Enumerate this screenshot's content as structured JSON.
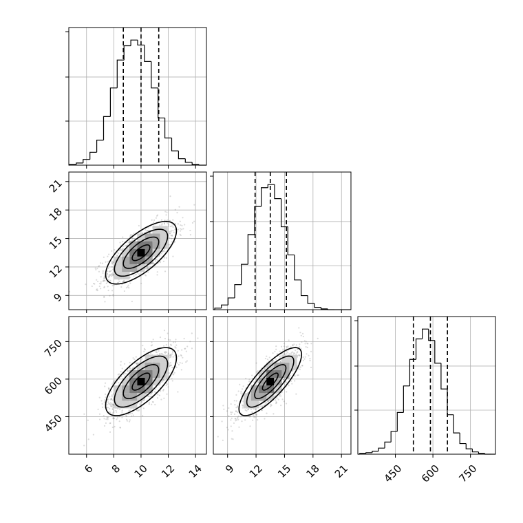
{
  "chart_data": {
    "type": "corner",
    "title": "",
    "variables": [
      {
        "range": [
          4.7,
          14.8
        ],
        "ticks": [
          6,
          8,
          10,
          12,
          14
        ],
        "tick_labels": [
          "6",
          "8",
          "10",
          "12",
          "14"
        ],
        "mean": 10.0,
        "sigma": 1.3,
        "quantiles": [
          8.7,
          10.0,
          11.3
        ],
        "hist_x": [
          5,
          5.5,
          6,
          6.5,
          7,
          7.5,
          8,
          8.5,
          9,
          9.5,
          10,
          10.5,
          11,
          11.5,
          12,
          12.5,
          13,
          13.5,
          14,
          14.5
        ],
        "hist_counts": [
          1,
          3,
          8,
          18,
          35,
          68,
          108,
          147,
          167,
          175,
          168,
          145,
          108,
          66,
          38,
          20,
          9,
          4,
          1,
          0
        ]
      },
      {
        "range": [
          7.5,
          22.0
        ],
        "ticks": [
          9,
          12,
          15,
          18,
          21
        ],
        "tick_labels": [
          "9",
          "12",
          "15",
          "18",
          "21"
        ],
        "mean": 13.5,
        "sigma": 1.65,
        "quantiles": [
          11.9,
          13.5,
          15.2
        ],
        "hist_x": [
          8,
          8.7,
          9.4,
          10.1,
          10.8,
          11.5,
          12.2,
          12.9,
          13.6,
          14.3,
          15,
          15.7,
          16.4,
          17.1,
          17.8,
          18.5,
          19.2,
          19.9,
          20.6
        ],
        "hist_counts": [
          2,
          6,
          15,
          32,
          58,
          96,
          132,
          156,
          160,
          142,
          106,
          70,
          38,
          18,
          8,
          3,
          1,
          0,
          0
        ]
      },
      {
        "range": [
          300,
          850
        ],
        "ticks": [
          450,
          600,
          750
        ],
        "tick_labels": [
          "450",
          "600",
          "750"
        ],
        "mean": 590,
        "sigma": 68,
        "quantiles": [
          522,
          590,
          658
        ],
        "hist_x": [
          320,
          345,
          370,
          395,
          420,
          445,
          470,
          495,
          520,
          545,
          570,
          595,
          620,
          645,
          670,
          695,
          720,
          745,
          770,
          795,
          820
        ],
        "hist_counts": [
          1,
          2,
          4,
          8,
          16,
          30,
          55,
          90,
          125,
          152,
          165,
          150,
          120,
          86,
          52,
          28,
          14,
          7,
          3,
          1,
          0
        ]
      }
    ],
    "correlations": {
      "0-1": 0.7,
      "0-2": 0.7,
      "1-2": 0.8
    },
    "contour_levels_sigma": [
      0.5,
      1.0,
      1.5,
      2.0
    ],
    "scatter_points_per_panel": 1200,
    "grid": true,
    "colors": {
      "line": "#000000",
      "points": "#7f7f7f",
      "grid": "#b0b0b0"
    }
  }
}
